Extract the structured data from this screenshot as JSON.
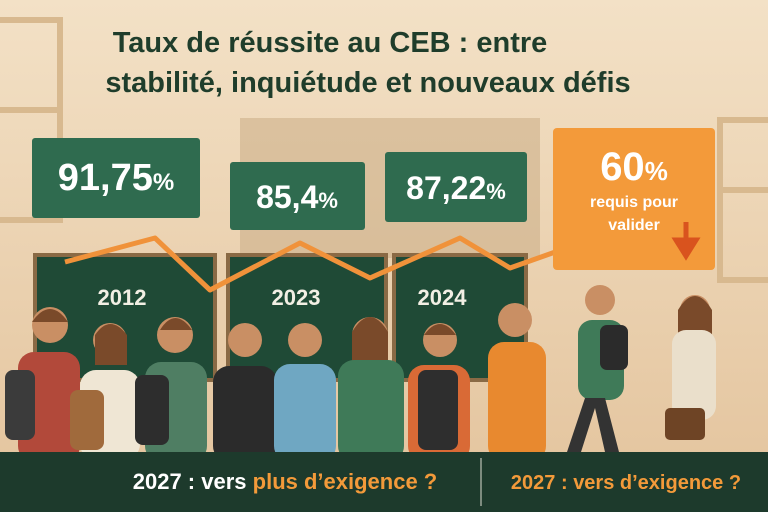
{
  "header": {
    "title_lines": [
      "Taux de réussite au CEB : entre",
      "stabilité, inquiétude et nouveaux défis"
    ]
  },
  "stats": [
    {
      "value": "91,75",
      "unit": "%"
    },
    {
      "value": "85,4",
      "unit": "%"
    },
    {
      "value": "87,22",
      "unit": "%"
    },
    {
      "value": "60",
      "unit": "%",
      "note_lines": [
        "requis pour",
        "valider"
      ]
    }
  ],
  "boards": [
    "2012",
    "2023",
    "2024"
  ],
  "footer": {
    "left": {
      "prefix": "2027 : vers",
      "highlight": "plus d’exigence ?"
    },
    "right": "2027 : vers d’exigence ?"
  }
}
